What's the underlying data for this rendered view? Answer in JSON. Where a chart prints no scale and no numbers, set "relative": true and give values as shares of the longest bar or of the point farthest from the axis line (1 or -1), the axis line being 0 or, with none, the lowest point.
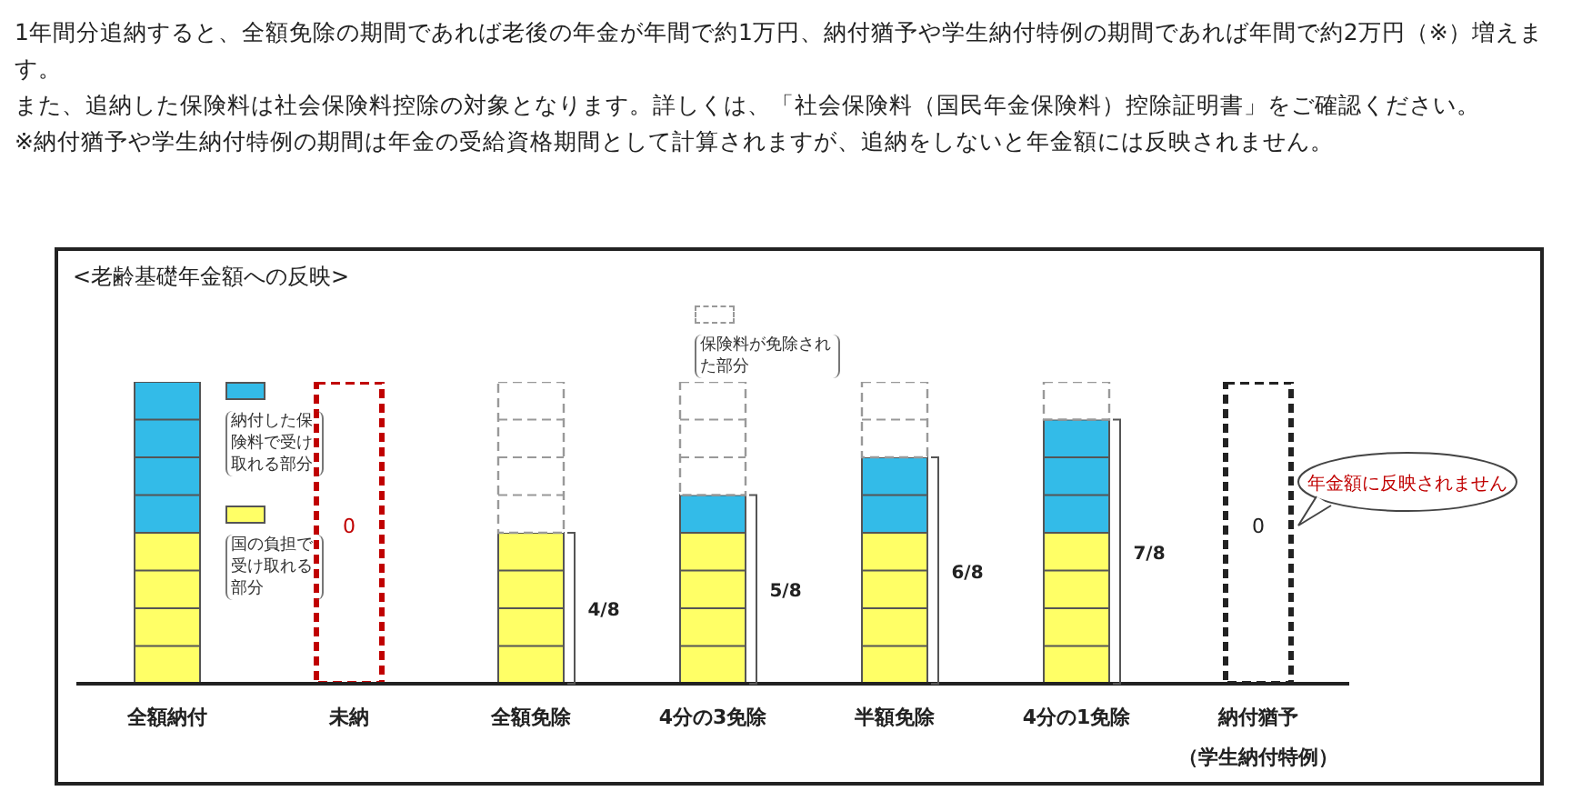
{
  "chart_data": {
    "type": "bar",
    "title": "<老齢基礎年金額への反映>",
    "stacked": true,
    "relative": true,
    "legend": "top left",
    "categories": [
      "全額納付",
      "未納",
      "全額免除",
      "4分の3免除",
      "半額免除",
      "4分の1免除",
      "納付猶予（学生納付特例）"
    ],
    "series": [
      {
        "name": "国の負担で受け取れる部分",
        "color": "#ffff66",
        "values": [
          0.5,
          null,
          0.5,
          0.5,
          0.5,
          0.5,
          null
        ]
      },
      {
        "name": "納付した保険料で受け取れる部分",
        "color": "#33bbe8",
        "values": [
          0.5,
          null,
          null,
          0.125,
          0.25,
          0.375,
          null
        ]
      },
      {
        "name": "保険料が免除された部分",
        "color": "#999999",
        "line_style": "dashed",
        "values": [
          null,
          null,
          0.5,
          0.375,
          0.25,
          0.125,
          null
        ]
      },
      {
        "colors": [
          null,
          "#c00000",
          null,
          null,
          null,
          null,
          "#222222"
        ],
        "line_style": "dashed",
        "values": [
          null,
          1,
          null,
          null,
          null,
          null,
          1
        ]
      }
    ],
    "annotations": [
      "1年間分追納すると、全額免除の期間であれば老後の年金が年間で約1万円、納付猶予や学生納付特例の期間であれば年間で約2万円（※）増えます。",
      "また、追納した保険料は社会保険料控除の対象となります。詳しくは、「社会保険料（国民年金保険料）控除証明書」をご確認ください。",
      "※納付猶予や学生納付特例の期間は年金の受給資格期間として計算されますが、追納をしないと年金額には反映されません。",
      "4/8",
      "5/8",
      "6/8",
      "7/8",
      "0",
      "0",
      "年金額に反映されません"
    ]
  }
}
